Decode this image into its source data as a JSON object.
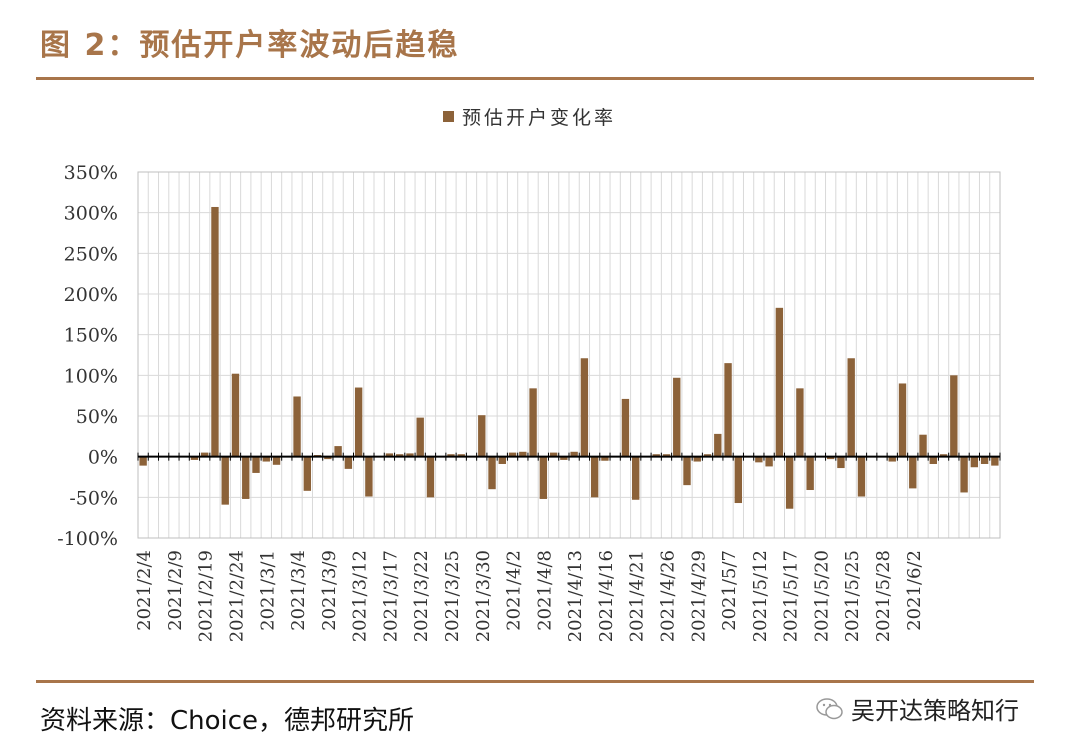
{
  "figure": {
    "title": "图 2：预估开户率波动后趋稳",
    "source": "资料来源：Choice，德邦研究所",
    "watermark": "吴开达策略知行"
  },
  "colors": {
    "bar": "#8C6239",
    "accent": "#A8754A",
    "grid": "#D9D9D9",
    "axis": "#000000"
  },
  "chart_data": {
    "type": "bar",
    "ylim": [
      -100,
      350
    ],
    "yticks": [
      "-100%",
      "-50%",
      "0%",
      "50%",
      "100%",
      "150%",
      "200%",
      "250%",
      "300%",
      "350%"
    ],
    "ytick_values": [
      -100,
      -50,
      0,
      50,
      100,
      150,
      200,
      250,
      300,
      350
    ],
    "grid": true,
    "legend_position": "top-center",
    "series": [
      {
        "name": "预估开户变化率",
        "values": [
          -11,
          0,
          0,
          0,
          0,
          -4,
          5,
          307,
          -59,
          102,
          -52,
          -20,
          -6,
          -10,
          0,
          74,
          -42,
          2,
          -3,
          13,
          -15,
          85,
          -49,
          0,
          4,
          3,
          4,
          48,
          -50,
          0,
          3,
          3,
          0,
          51,
          -40,
          -9,
          5,
          6,
          84,
          -52,
          5,
          -4,
          6,
          121,
          -50,
          -5,
          0,
          71,
          -53,
          0,
          3,
          3,
          97,
          -35,
          -6,
          3,
          28,
          115,
          -57,
          0,
          -7,
          -12,
          183,
          -64,
          84,
          -41,
          0,
          -3,
          -14,
          121,
          -49,
          0,
          0,
          -6,
          90,
          -39,
          27,
          -9,
          3,
          100,
          -44,
          -13,
          -9,
          -11
        ]
      }
    ],
    "x_tick_labels": [
      "2021/2/4",
      "2021/2/9",
      "2021/2/19",
      "2021/2/24",
      "2021/3/1",
      "2021/3/4",
      "2021/3/9",
      "2021/3/12",
      "2021/3/17",
      "2021/3/22",
      "2021/3/25",
      "2021/3/30",
      "2021/4/2",
      "2021/4/8",
      "2021/4/13",
      "2021/4/16",
      "2021/4/21",
      "2021/4/26",
      "2021/4/29",
      "2021/5/7",
      "2021/5/12",
      "2021/5/17",
      "2021/5/20",
      "2021/5/25",
      "2021/5/28",
      "2021/6/2"
    ],
    "x_tick_every": 3
  }
}
